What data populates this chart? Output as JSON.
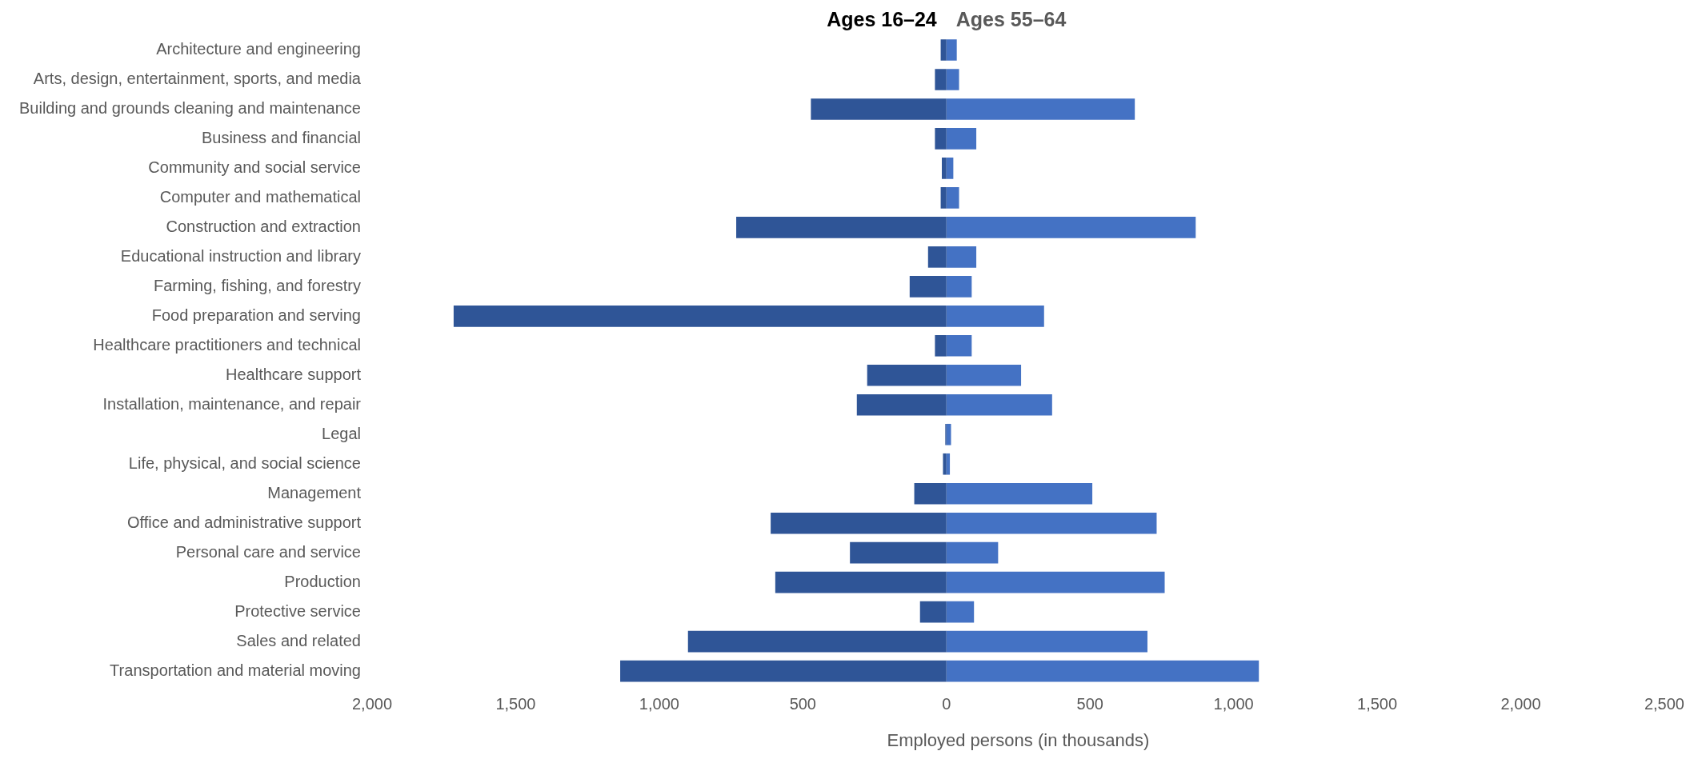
{
  "chart_data": {
    "type": "bar",
    "orientation": "horizontal",
    "stacked": true,
    "xlabel": "Employed persons (in thousands)",
    "annotations": [
      "Ages 16–24",
      "Ages 55–64"
    ],
    "categories": [
      "Architecture and engineering",
      "Arts, design, entertainment, sports, and media",
      "Building and grounds cleaning and maintenance",
      "Business and financial",
      "Community and social service",
      "Computer and mathematical",
      "Construction and extraction",
      "Educational instruction and library",
      "Farming, fishing, and forestry",
      "Food preparation and serving",
      "Healthcare practitioners and technical",
      "Healthcare support",
      "Installation, maintenance, and repair",
      "Legal",
      "Life, physical, and social science",
      "Management",
      "Office and administrative support",
      "Personal care and service",
      "Production",
      "Protective service",
      "Sales and related",
      "Transportation and material moving"
    ],
    "series": [
      {
        "color": "#2f5597",
        "values": [
          -20,
          -40,
          -472,
          -40,
          -16,
          -20,
          -732,
          -64,
          -128,
          -1716,
          -40,
          -276,
          -312,
          -4,
          -12,
          -112,
          -612,
          -336,
          -596,
          -92,
          -900,
          -1136
        ]
      },
      {
        "color": "#4472c4",
        "values": [
          36,
          44,
          656,
          104,
          24,
          44,
          868,
          104,
          88,
          340,
          88,
          260,
          368,
          16,
          12,
          508,
          732,
          180,
          760,
          96,
          700,
          1088
        ]
      }
    ],
    "xlim": [
      -2000,
      2500
    ],
    "xticks": [
      {
        "value": -2000,
        "label": "2,000"
      },
      {
        "value": -1500,
        "label": "1,500"
      },
      {
        "value": -1000,
        "label": "1,000"
      },
      {
        "value": -500,
        "label": "500"
      },
      0,
      500,
      {
        "value": 1000,
        "label": "1,000"
      },
      {
        "value": 1500,
        "label": "1,500"
      },
      {
        "value": 2000,
        "label": "2,000"
      },
      {
        "value": 2500,
        "label": "2,500"
      }
    ],
    "grid": false,
    "legend": false
  }
}
